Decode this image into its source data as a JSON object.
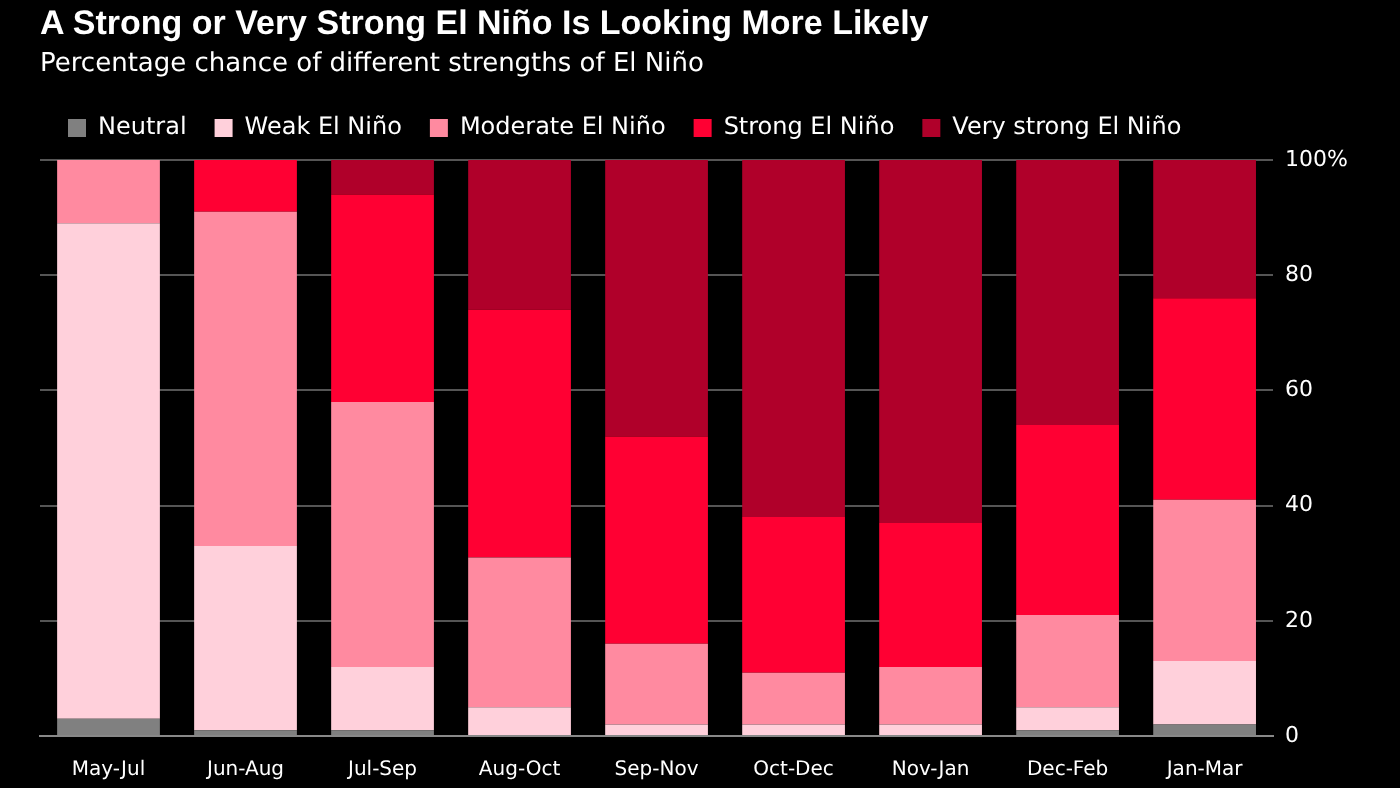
{
  "chart_data": {
    "type": "bar",
    "title": "A Strong or Very Strong El Niño Is Looking More Likely",
    "subtitle": "Percentage chance of different strengths of El Niño",
    "categories": [
      "May-Jul",
      "Jun-Aug",
      "Jul-Sep",
      "Aug-Oct",
      "Sep-Nov",
      "Oct-Dec",
      "Nov-Jan",
      "Dec-Feb",
      "Jan-Mar"
    ],
    "stacked": true,
    "series": [
      {
        "name": "Neutral",
        "color": "#808080",
        "values": [
          3,
          1,
          1,
          0,
          0,
          0,
          0,
          1,
          2
        ]
      },
      {
        "name": "Weak El Niño",
        "color": "#ffd0db",
        "values": [
          86,
          32,
          11,
          5,
          2,
          2,
          2,
          4,
          11
        ]
      },
      {
        "name": "Moderate El Niño",
        "color": "#ff8aa0",
        "values": [
          11,
          58,
          46,
          26,
          14,
          9,
          10,
          16,
          28
        ]
      },
      {
        "name": "Strong El Niño",
        "color": "#ff0033",
        "values": [
          0,
          9,
          36,
          43,
          36,
          27,
          25,
          33,
          35
        ]
      },
      {
        "name": "Very strong El Niño",
        "color": "#b0002a",
        "values": [
          0,
          0,
          6,
          26,
          48,
          62,
          63,
          46,
          24
        ]
      }
    ],
    "ylim": [
      0,
      100
    ],
    "yticks": [
      0,
      20,
      40,
      60,
      80,
      {
        "value": 100,
        "label": "100%"
      }
    ],
    "grid": "y",
    "legend": "top left"
  }
}
